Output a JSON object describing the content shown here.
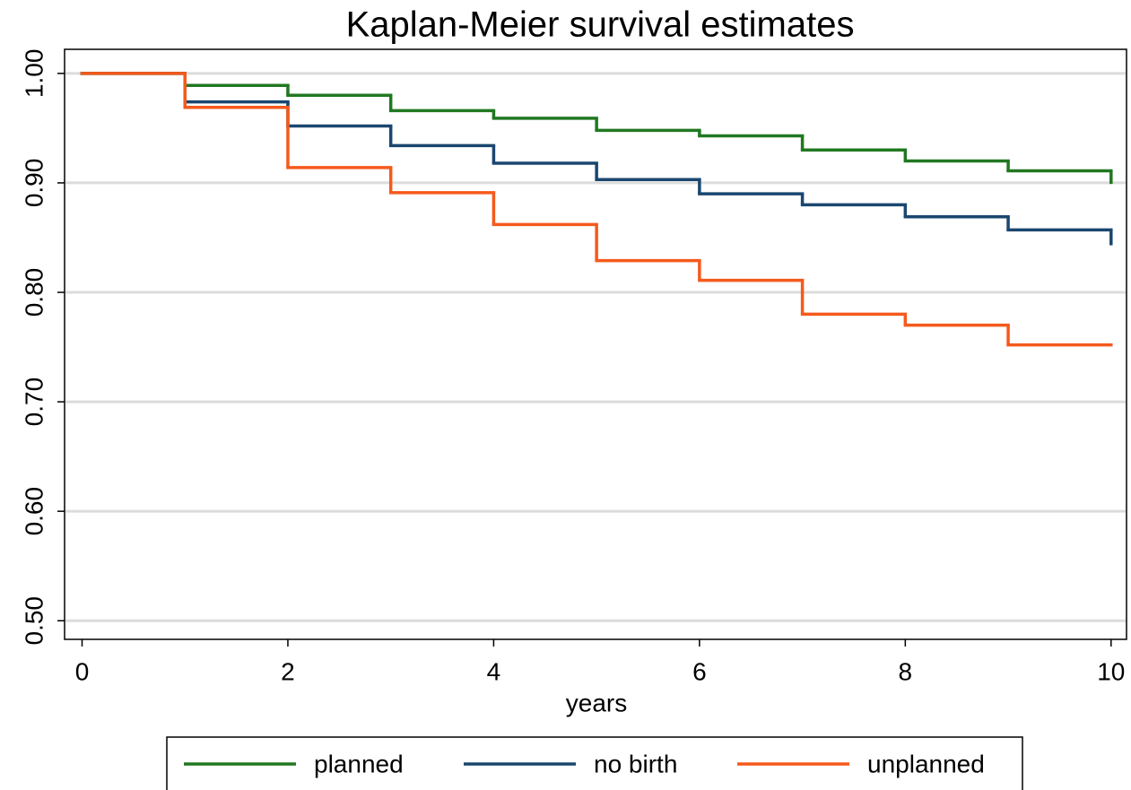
{
  "chart_data": {
    "type": "step",
    "title": "Kaplan-Meier survival estimates",
    "xlabel": "years",
    "x": [
      0,
      1,
      2,
      3,
      4,
      5,
      6,
      7,
      8,
      9,
      10
    ],
    "series": [
      {
        "name": "planned",
        "color": "#217821",
        "values": [
          1.0,
          0.989,
          0.98,
          0.966,
          0.959,
          0.948,
          0.943,
          0.93,
          0.92,
          0.911,
          0.899
        ]
      },
      {
        "name": "no birth",
        "color": "#1a476f",
        "values": [
          1.0,
          0.974,
          0.952,
          0.934,
          0.918,
          0.903,
          0.89,
          0.88,
          0.869,
          0.857,
          0.843
        ]
      },
      {
        "name": "unplanned",
        "color": "#f55a1c",
        "values": [
          1.0,
          0.969,
          0.914,
          0.891,
          0.862,
          0.829,
          0.811,
          0.78,
          0.77,
          0.752,
          0.752
        ]
      }
    ],
    "xlim": [
      -0.17,
      10.15
    ],
    "ylim": [
      0.483,
      1.022
    ],
    "xticks": [
      0,
      2,
      4,
      6,
      8,
      10
    ],
    "yticks": [
      {
        "value": 0.5,
        "label": "0.50"
      },
      {
        "value": 0.6,
        "label": "0.60"
      },
      {
        "value": 0.7,
        "label": "0.70"
      },
      {
        "value": 0.8,
        "label": "0.80"
      },
      {
        "value": 0.9,
        "label": "0.90"
      },
      {
        "value": 1.0,
        "label": "1.00"
      }
    ],
    "grid": true,
    "legend": "bottom"
  }
}
